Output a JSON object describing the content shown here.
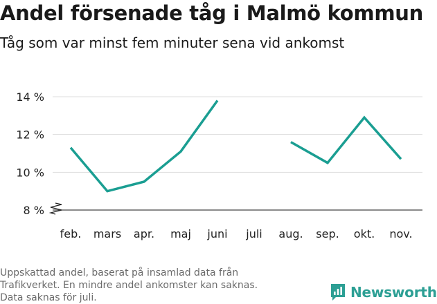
{
  "title": "Andel försenade tåg i Malmö kommun",
  "subtitle": "Tåg som var minst fem minuter sena vid ankomst",
  "note": [
    "Uppskattad andel, baserat på insamlad data från",
    "Trafikverket. En mindre andel ankomster kan saknas.",
    "Data saknas för juli."
  ],
  "brand": {
    "name": "Newsworthy",
    "color": "#2c9f94",
    "icon": "bar-chart-speech-bubble-icon"
  },
  "chart_data": {
    "type": "line",
    "categories": [
      "feb.",
      "mars",
      "apr.",
      "maj",
      "juni",
      "juli",
      "aug.",
      "sep.",
      "okt.",
      "nov."
    ],
    "series": [
      {
        "values": [
          11.3,
          9.0,
          9.5,
          11.1,
          13.8,
          null,
          11.6,
          10.5,
          12.9,
          10.7
        ],
        "color": "#1a9e92"
      }
    ],
    "yticks": [
      8,
      10,
      12,
      14
    ],
    "ytick_labels": [
      "8 %",
      "10 %",
      "12 %",
      "14 %"
    ],
    "ylim": [
      8,
      14
    ],
    "y_axis_broken": true,
    "grid": true,
    "xlabel": "",
    "ylabel": ""
  }
}
